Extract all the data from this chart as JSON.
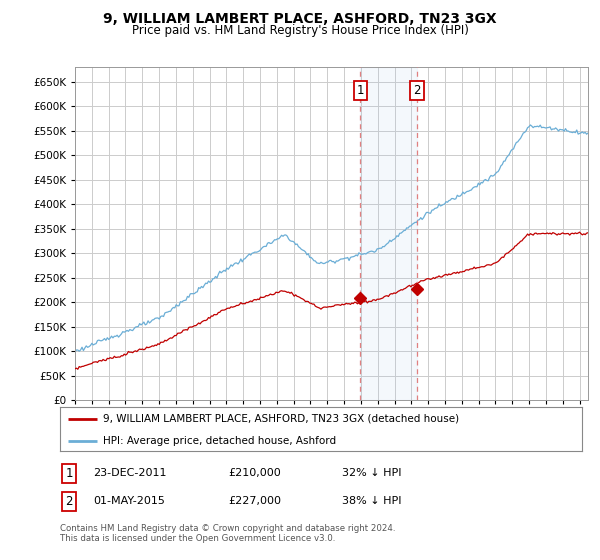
{
  "title": "9, WILLIAM LAMBERT PLACE, ASHFORD, TN23 3GX",
  "subtitle": "Price paid vs. HM Land Registry's House Price Index (HPI)",
  "ylim": [
    0,
    680000
  ],
  "yticks": [
    0,
    50000,
    100000,
    150000,
    200000,
    250000,
    300000,
    350000,
    400000,
    450000,
    500000,
    550000,
    600000,
    650000
  ],
  "hpi_color": "#6baed6",
  "price_color": "#c00000",
  "sale1_date_num": 2011.97,
  "sale1_price": 210000,
  "sale1_label": "1",
  "sale1_date_str": "23-DEC-2011",
  "sale1_pct": "32%",
  "sale2_date_num": 2015.33,
  "sale2_price": 227000,
  "sale2_label": "2",
  "sale2_date_str": "01-MAY-2015",
  "sale2_pct": "38%",
  "legend_line1": "9, WILLIAM LAMBERT PLACE, ASHFORD, TN23 3GX (detached house)",
  "legend_line2": "HPI: Average price, detached house, Ashford",
  "footnote": "Contains HM Land Registry data © Crown copyright and database right 2024.\nThis data is licensed under the Open Government Licence v3.0.",
  "background_color": "#ffffff",
  "grid_color": "#cccccc",
  "xlim_start": 1995,
  "xlim_end": 2025.5
}
